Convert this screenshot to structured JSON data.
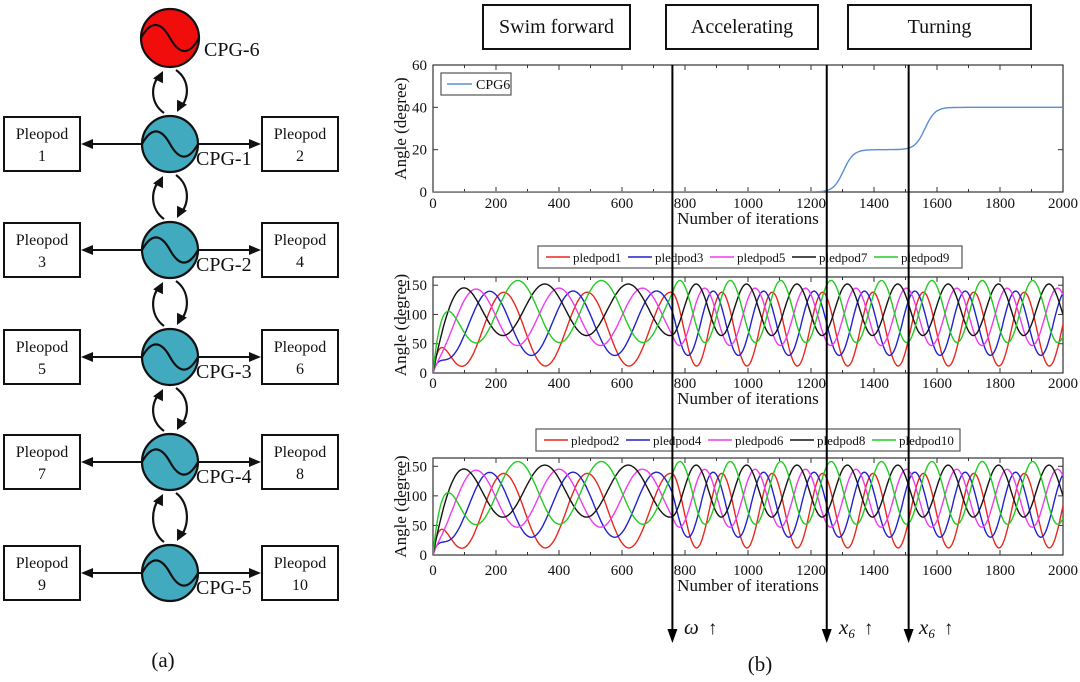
{
  "panel_a": {
    "caption": "(a)",
    "top_node": {
      "label": "CPG-6",
      "color": "#f20d0d"
    },
    "node_color": "#41aabf",
    "chain": [
      {
        "cpg": "CPG-1",
        "left": {
          "title": "Pleopod",
          "num": "1"
        },
        "right": {
          "title": "Pleopod",
          "num": "2"
        }
      },
      {
        "cpg": "CPG-2",
        "left": {
          "title": "Pleopod",
          "num": "3"
        },
        "right": {
          "title": "Pleopod",
          "num": "4"
        }
      },
      {
        "cpg": "CPG-3",
        "left": {
          "title": "Pleopod",
          "num": "5"
        },
        "right": {
          "title": "Pleopod",
          "num": "6"
        }
      },
      {
        "cpg": "CPG-4",
        "left": {
          "title": "Pleopod",
          "num": "7"
        },
        "right": {
          "title": "Pleopod",
          "num": "8"
        }
      },
      {
        "cpg": "CPG-5",
        "left": {
          "title": "Pleopod",
          "num": "9"
        },
        "right": {
          "title": "Pleopod",
          "num": "10"
        }
      }
    ]
  },
  "panel_b": {
    "caption": "(b)",
    "phase_labels": [
      "Swim forward",
      "Accelerating",
      "Turning"
    ],
    "timeline": {
      "line_xs": [
        760,
        1250,
        1510
      ],
      "line_color": "#000000",
      "annotations": [
        {
          "base": "ω",
          "sub": "",
          "arrow": "↑"
        },
        {
          "base": "x",
          "sub": "6",
          "arrow": "↑"
        },
        {
          "base": "x",
          "sub": "6",
          "arrow": "↑"
        }
      ]
    }
  },
  "chart_data": [
    {
      "type": "line",
      "title": "",
      "xlabel": "Number of iterations",
      "ylabel": "Angle (degree)",
      "xlim": [
        0,
        2000
      ],
      "ylim": [
        0,
        60
      ],
      "xticks": [
        0,
        200,
        400,
        600,
        800,
        1000,
        1200,
        1400,
        1600,
        1800,
        2000
      ],
      "xminor_step": 100,
      "yticks": [
        0,
        20,
        40,
        60
      ],
      "grid": false,
      "legend": {
        "position": "inside-top-left",
        "entries": [
          "CPG6"
        ]
      },
      "series": [
        {
          "name": "CPG6",
          "color": "#5b8dd5",
          "model": "steps",
          "base": 0,
          "transitions": [
            {
              "x": 1303,
              "width": 16,
              "amount": 20
            },
            {
              "x": 1562,
              "width": 16,
              "amount": 20
            }
          ],
          "key_points": [
            [
              0,
              0
            ],
            [
              1250,
              0
            ],
            [
              1360,
              20
            ],
            [
              1508,
              20
            ],
            [
              1620,
              40
            ],
            [
              2000,
              40
            ]
          ]
        }
      ]
    },
    {
      "type": "line",
      "title": "",
      "xlabel": "Number of iterations",
      "ylabel": "Angle (degree)",
      "xlim": [
        0,
        2000
      ],
      "ylim": [
        0,
        164
      ],
      "xticks": [
        0,
        200,
        400,
        600,
        800,
        1000,
        1200,
        1400,
        1600,
        1800,
        2000
      ],
      "xminor_step": 100,
      "yticks": [
        0,
        50,
        100,
        150
      ],
      "grid": false,
      "legend": {
        "position": "above",
        "entries": [
          "pledpod1",
          "pledpod3",
          "pledpod5",
          "pledpod7",
          "pledpod9"
        ]
      },
      "oscillation": {
        "period_swim": 265,
        "period_fast": 160,
        "switch_x": 760,
        "ramp_tau": 30
      },
      "series": [
        {
          "name": "pledpod1",
          "color": "#e8281e",
          "mean": 75,
          "amp": 63,
          "phase_deg": -215
        },
        {
          "name": "pledpod3",
          "color": "#2222cc",
          "mean": 85,
          "amp": 55,
          "phase_deg": -154
        },
        {
          "name": "pledpod5",
          "color": "#ee3cee",
          "mean": 96,
          "amp": 49,
          "phase_deg": -93
        },
        {
          "name": "pledpod7",
          "color": "#141414",
          "mean": 108,
          "amp": 44,
          "phase_deg": -32
        },
        {
          "name": "pledpod9",
          "color": "#22cc22",
          "mean": 105,
          "amp": 53,
          "phase_deg": -276
        }
      ]
    },
    {
      "type": "line",
      "title": "",
      "xlabel": "Number of iterations",
      "ylabel": "Angle (degree)",
      "xlim": [
        0,
        2000
      ],
      "ylim": [
        0,
        164
      ],
      "xticks": [
        0,
        200,
        400,
        600,
        800,
        1000,
        1200,
        1400,
        1600,
        1800,
        2000
      ],
      "xminor_step": 100,
      "yticks": [
        0,
        50,
        100,
        150
      ],
      "grid": false,
      "legend": {
        "position": "above",
        "entries": [
          "pledpod2",
          "pledpod4",
          "pledpod6",
          "pledpod8",
          "pledpod10"
        ]
      },
      "oscillation": {
        "period_swim": 265,
        "period_fast": 160,
        "switch_x": 760,
        "ramp_tau": 30
      },
      "series": [
        {
          "name": "pledpod2",
          "color": "#e8281e",
          "mean": 75,
          "amp": 63,
          "phase_deg": -215
        },
        {
          "name": "pledpod4",
          "color": "#2222cc",
          "mean": 85,
          "amp": 55,
          "phase_deg": -154
        },
        {
          "name": "pledpod6",
          "color": "#ee3cee",
          "mean": 96,
          "amp": 49,
          "phase_deg": -93
        },
        {
          "name": "pledpod8",
          "color": "#141414",
          "mean": 108,
          "amp": 44,
          "phase_deg": -32
        },
        {
          "name": "pledpod10",
          "color": "#22cc22",
          "mean": 105,
          "amp": 53,
          "phase_deg": -276
        }
      ]
    }
  ]
}
